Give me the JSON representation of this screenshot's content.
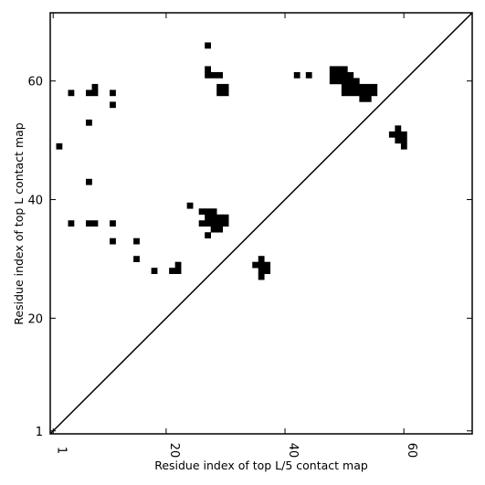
{
  "chart_data": {
    "type": "heatmap",
    "title": "",
    "xlabel": "Residue index of top L/5 contact map",
    "ylabel": "Residue index of top L contact map",
    "xlim": [
      0.5,
      71.5
    ],
    "ylim": [
      0.5,
      71.5
    ],
    "x_ticks": [
      1,
      20,
      40,
      60
    ],
    "y_ticks": [
      1,
      20,
      40,
      60
    ],
    "x_tick_rotation": "vertical",
    "grid": false,
    "legend": "none",
    "diagonal": {
      "from": [
        0.5,
        0.5
      ],
      "to": [
        71.5,
        71.5
      ]
    },
    "colors": {
      "contact": "#000000",
      "frame": "#000000",
      "background": "#ffffff"
    },
    "contacts": [
      [
        27,
        66
      ],
      [
        27,
        62
      ],
      [
        48,
        62
      ],
      [
        49,
        62
      ],
      [
        50,
        62
      ],
      [
        27,
        61
      ],
      [
        28,
        61
      ],
      [
        29,
        61
      ],
      [
        42,
        61
      ],
      [
        44,
        61
      ],
      [
        48,
        61
      ],
      [
        49,
        61
      ],
      [
        50,
        61
      ],
      [
        51,
        61
      ],
      [
        48,
        60
      ],
      [
        49,
        60
      ],
      [
        50,
        60
      ],
      [
        51,
        60
      ],
      [
        52,
        60
      ],
      [
        8,
        59
      ],
      [
        29,
        59
      ],
      [
        30,
        59
      ],
      [
        50,
        59
      ],
      [
        51,
        59
      ],
      [
        52,
        59
      ],
      [
        53,
        59
      ],
      [
        54,
        59
      ],
      [
        55,
        59
      ],
      [
        4,
        58
      ],
      [
        7,
        58
      ],
      [
        8,
        58
      ],
      [
        11,
        58
      ],
      [
        29,
        58
      ],
      [
        30,
        58
      ],
      [
        50,
        58
      ],
      [
        51,
        58
      ],
      [
        52,
        58
      ],
      [
        53,
        58
      ],
      [
        54,
        58
      ],
      [
        55,
        58
      ],
      [
        53,
        57
      ],
      [
        54,
        57
      ],
      [
        11,
        56
      ],
      [
        7,
        53
      ],
      [
        59,
        52
      ],
      [
        58,
        51
      ],
      [
        59,
        51
      ],
      [
        60,
        51
      ],
      [
        59,
        50
      ],
      [
        60,
        50
      ],
      [
        2,
        49
      ],
      [
        60,
        49
      ],
      [
        7,
        43
      ],
      [
        24,
        39
      ],
      [
        26,
        38
      ],
      [
        27,
        38
      ],
      [
        28,
        38
      ],
      [
        27,
        37
      ],
      [
        28,
        37
      ],
      [
        29,
        37
      ],
      [
        30,
        37
      ],
      [
        4,
        36
      ],
      [
        7,
        36
      ],
      [
        8,
        36
      ],
      [
        11,
        36
      ],
      [
        26,
        36
      ],
      [
        27,
        36
      ],
      [
        28,
        36
      ],
      [
        29,
        36
      ],
      [
        30,
        36
      ],
      [
        28,
        35
      ],
      [
        29,
        35
      ],
      [
        27,
        34
      ],
      [
        11,
        33
      ],
      [
        15,
        33
      ],
      [
        15,
        30
      ],
      [
        36,
        30
      ],
      [
        22,
        29
      ],
      [
        35,
        29
      ],
      [
        36,
        29
      ],
      [
        37,
        29
      ],
      [
        18,
        28
      ],
      [
        21,
        28
      ],
      [
        22,
        28
      ],
      [
        36,
        28
      ],
      [
        37,
        28
      ],
      [
        36,
        27
      ]
    ]
  }
}
